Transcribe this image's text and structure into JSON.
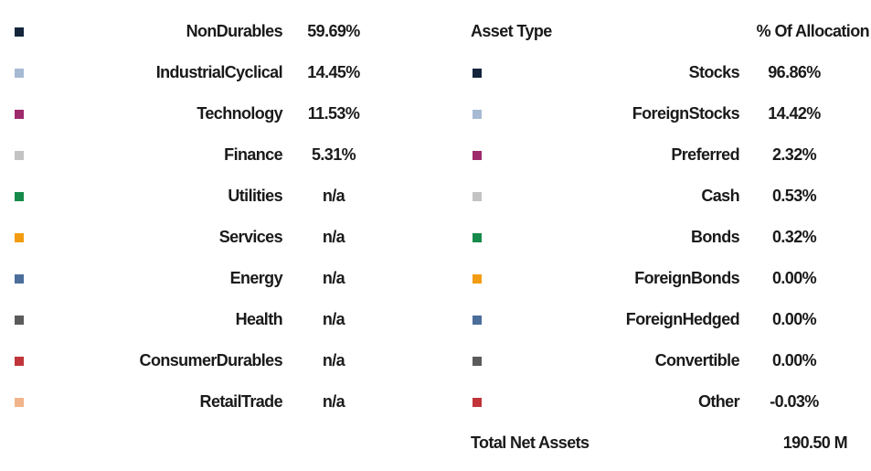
{
  "sectors": [
    {
      "name": "NonDurables",
      "value": "59.69%",
      "color": "#14253c"
    },
    {
      "name": "IndustrialCyclical",
      "value": "14.45%",
      "color": "#a7bad3"
    },
    {
      "name": "Technology",
      "value": "11.53%",
      "color": "#9e2a6b"
    },
    {
      "name": "Finance",
      "value": "5.31%",
      "color": "#c3c3c3"
    },
    {
      "name": "Utilities",
      "value": "n/a",
      "color": "#168a4a"
    },
    {
      "name": "Services",
      "value": "n/a",
      "color": "#f39c12"
    },
    {
      "name": "Energy",
      "value": "n/a",
      "color": "#4b6e9b"
    },
    {
      "name": "Health",
      "value": "n/a",
      "color": "#5b5b5b"
    },
    {
      "name": "ConsumerDurables",
      "value": "n/a",
      "color": "#c0343a"
    },
    {
      "name": "RetailTrade",
      "value": "n/a",
      "color": "#f2b48a"
    }
  ],
  "asset_table": {
    "header_type": "Asset Type",
    "header_allocation": "% Of Allocation",
    "rows": [
      {
        "name": "Stocks",
        "value": "96.86%",
        "color": "#14253c"
      },
      {
        "name": "ForeignStocks",
        "value": "14.42%",
        "color": "#a7bad3"
      },
      {
        "name": "Preferred",
        "value": "2.32%",
        "color": "#9e2a6b"
      },
      {
        "name": "Cash",
        "value": "0.53%",
        "color": "#c3c3c3"
      },
      {
        "name": "Bonds",
        "value": "0.32%",
        "color": "#168a4a"
      },
      {
        "name": "ForeignBonds",
        "value": "0.00%",
        "color": "#f39c12"
      },
      {
        "name": "ForeignHedged",
        "value": "0.00%",
        "color": "#4b6e9b"
      },
      {
        "name": "Convertible",
        "value": "0.00%",
        "color": "#5b5b5b"
      },
      {
        "name": "Other",
        "value": "-0.03%",
        "color": "#c0343a"
      }
    ],
    "total_label": "Total Net Assets",
    "total_value": "190.50 M"
  }
}
